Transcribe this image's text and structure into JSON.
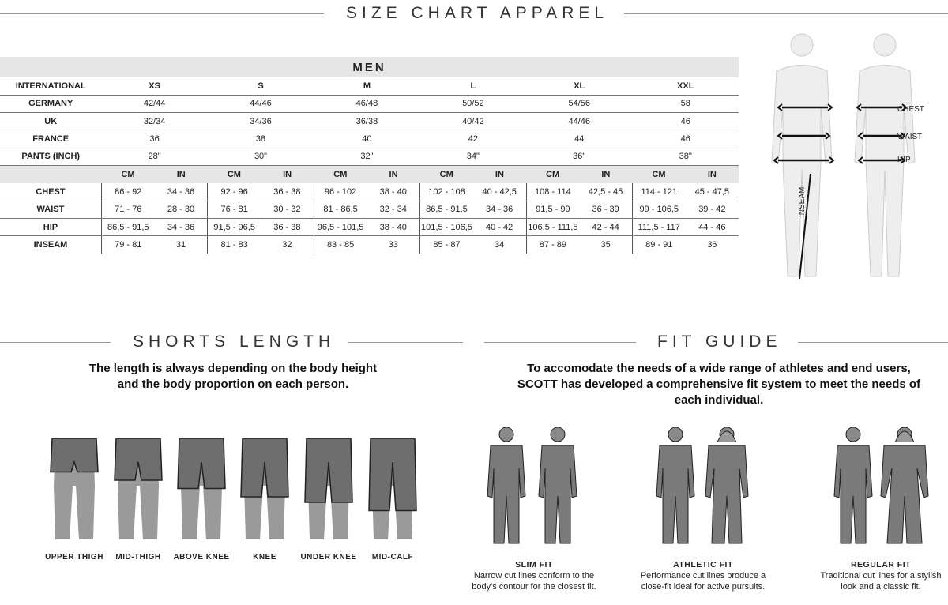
{
  "title": "SIZE CHART APPAREL",
  "table": {
    "section": "MEN",
    "sizes_label": "INTERNATIONAL",
    "sizes": [
      "XS",
      "S",
      "M",
      "L",
      "XL",
      "XXL"
    ],
    "conversions": [
      {
        "label": "GERMANY",
        "values": [
          "42/44",
          "44/46",
          "46/48",
          "50/52",
          "54/56",
          "58"
        ]
      },
      {
        "label": "UK",
        "values": [
          "32/34",
          "34/36",
          "36/38",
          "40/42",
          "44/46",
          "46"
        ]
      },
      {
        "label": "FRANCE",
        "values": [
          "36",
          "38",
          "40",
          "42",
          "44",
          "46"
        ]
      },
      {
        "label": "PANTS (INCH)",
        "values": [
          "28\"",
          "30\"",
          "32\"",
          "34\"",
          "36\"",
          "38\""
        ]
      }
    ],
    "unit_cm": "CM",
    "unit_in": "IN",
    "measurements": [
      {
        "label": "CHEST",
        "values": [
          [
            "86 - 92",
            "34 - 36"
          ],
          [
            "92 - 96",
            "36 - 38"
          ],
          [
            "96 - 102",
            "38 - 40"
          ],
          [
            "102 - 108",
            "40 - 42,5"
          ],
          [
            "108 - 114",
            "42,5 - 45"
          ],
          [
            "114 - 121",
            "45 - 47,5"
          ]
        ]
      },
      {
        "label": "WAIST",
        "values": [
          [
            "71 - 76",
            "28 - 30"
          ],
          [
            "76 - 81",
            "30 - 32"
          ],
          [
            "81 - 86,5",
            "32 - 34"
          ],
          [
            "86,5 - 91,5",
            "34 - 36"
          ],
          [
            "91,5 - 99",
            "36 - 39"
          ],
          [
            "99 - 106,5",
            "39 - 42"
          ]
        ]
      },
      {
        "label": "HIP",
        "values": [
          [
            "86,5 - 91,5",
            "34 - 36"
          ],
          [
            "91,5 - 96,5",
            "36 - 38"
          ],
          [
            "96,5 - 101,5",
            "38 - 40"
          ],
          [
            "101,5 - 106,5",
            "40 - 42"
          ],
          [
            "106,5 - 111,5",
            "42 - 44"
          ],
          [
            "111,5 - 117",
            "44 - 46"
          ]
        ]
      },
      {
        "label": "INSEAM",
        "values": [
          [
            "79 - 81",
            "31"
          ],
          [
            "81 - 83",
            "32"
          ],
          [
            "83 - 85",
            "33"
          ],
          [
            "85 - 87",
            "34"
          ],
          [
            "87 - 89",
            "35"
          ],
          [
            "89 - 91",
            "36"
          ]
        ]
      }
    ]
  },
  "body_labels": {
    "chest": "CHEST",
    "waist": "WAIST",
    "hip": "HIP",
    "inseam": "INSEAM"
  },
  "shorts": {
    "title": "SHORTS LENGTH",
    "subtitle": "The length is always depending on the body height and the body proportion on each person.",
    "items": [
      {
        "label": "UPPER THIGH",
        "len": 0.25
      },
      {
        "label": "MID-THIGH",
        "len": 0.4
      },
      {
        "label": "ABOVE KNEE",
        "len": 0.55
      },
      {
        "label": "KNEE",
        "len": 0.7
      },
      {
        "label": "UNDER KNEE",
        "len": 0.8
      },
      {
        "label": "MID-CALF",
        "len": 0.95
      }
    ]
  },
  "fit": {
    "title": "FIT GUIDE",
    "subtitle": "To accomodate the needs of a wide range of athletes and end users, SCOTT has developed a comprehensive fit system to meet the needs of each individual.",
    "items": [
      {
        "label": "SLIM FIT",
        "desc": "Narrow cut lines conform to the body's contour for the closest fit."
      },
      {
        "label": "ATHLETIC FIT",
        "desc": "Performance cut lines produce a close-fit ideal for active pursuits."
      },
      {
        "label": "REGULAR FIT",
        "desc": "Traditional cut lines for a stylish look and a classic fit."
      }
    ]
  },
  "colors": {
    "header_bg": "#e6e6e6",
    "figure": "#9a9a9a",
    "garment": "#6e6e6e"
  }
}
